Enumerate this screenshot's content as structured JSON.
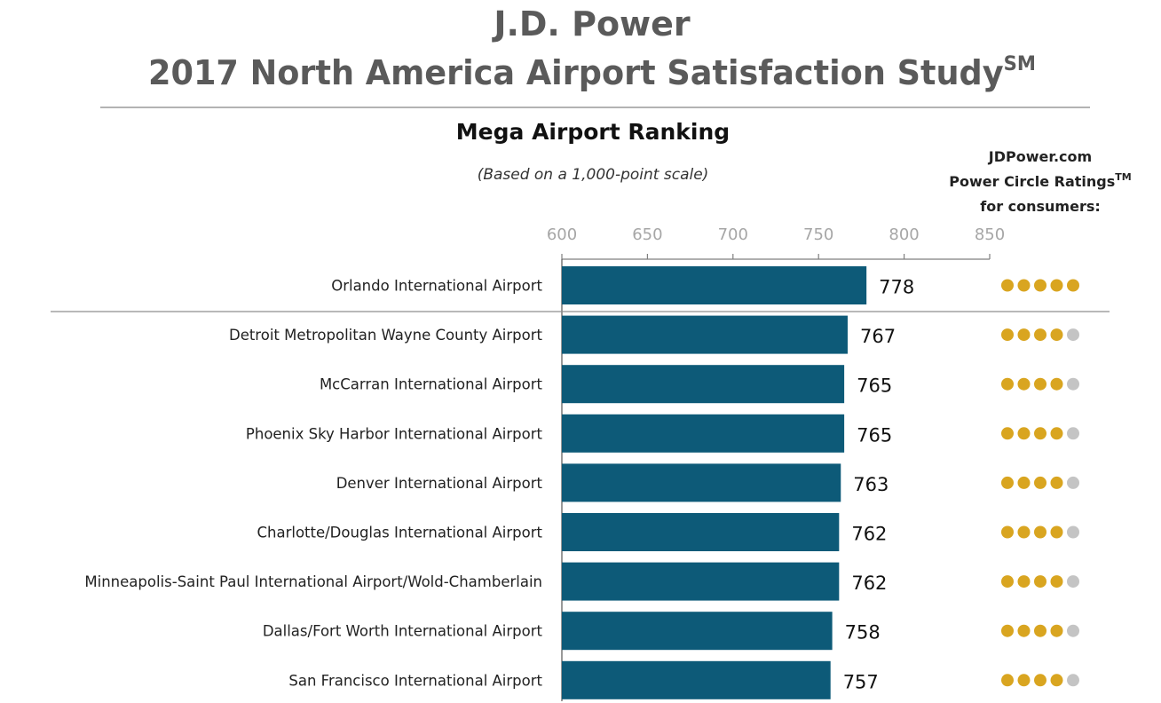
{
  "header": {
    "brand": "J.D. Power",
    "study_title": "2017 North America Airport Satisfaction Study",
    "study_title_mark": "SM"
  },
  "chart_data": {
    "type": "bar",
    "orientation": "horizontal",
    "title": "Mega Airport Ranking",
    "subtitle": "(Based on a 1,000-point scale)",
    "xlim": [
      600,
      850
    ],
    "xticks": [
      600,
      650,
      700,
      750,
      800,
      850
    ],
    "categories": [
      "Orlando International Airport",
      "Detroit Metropolitan Wayne County Airport",
      "McCarran International Airport",
      "Phoenix Sky Harbor International Airport",
      "Denver International Airport",
      "Charlotte/Douglas International Airport",
      "Minneapolis-Saint Paul International Airport/Wold-Chamberlain",
      "Dallas/Fort Worth International Airport",
      "San Francisco International Airport"
    ],
    "values": [
      778,
      767,
      765,
      765,
      763,
      762,
      762,
      758,
      757
    ],
    "power_circle_ratings": [
      5,
      4,
      4,
      4,
      4,
      4,
      4,
      4,
      4
    ],
    "ratings_header": [
      "JDPower.com",
      "Power Circle Ratings",
      "for consumers:"
    ],
    "ratings_header_mark": "TM",
    "colors": {
      "bar": "#0d5a78",
      "circle_on": "#d9a520",
      "circle_off": "#c4c4c4",
      "axis": "#7f7f7f",
      "title": "#5a5a5a",
      "tick": "#a6a6a6",
      "text": "#222222"
    }
  }
}
